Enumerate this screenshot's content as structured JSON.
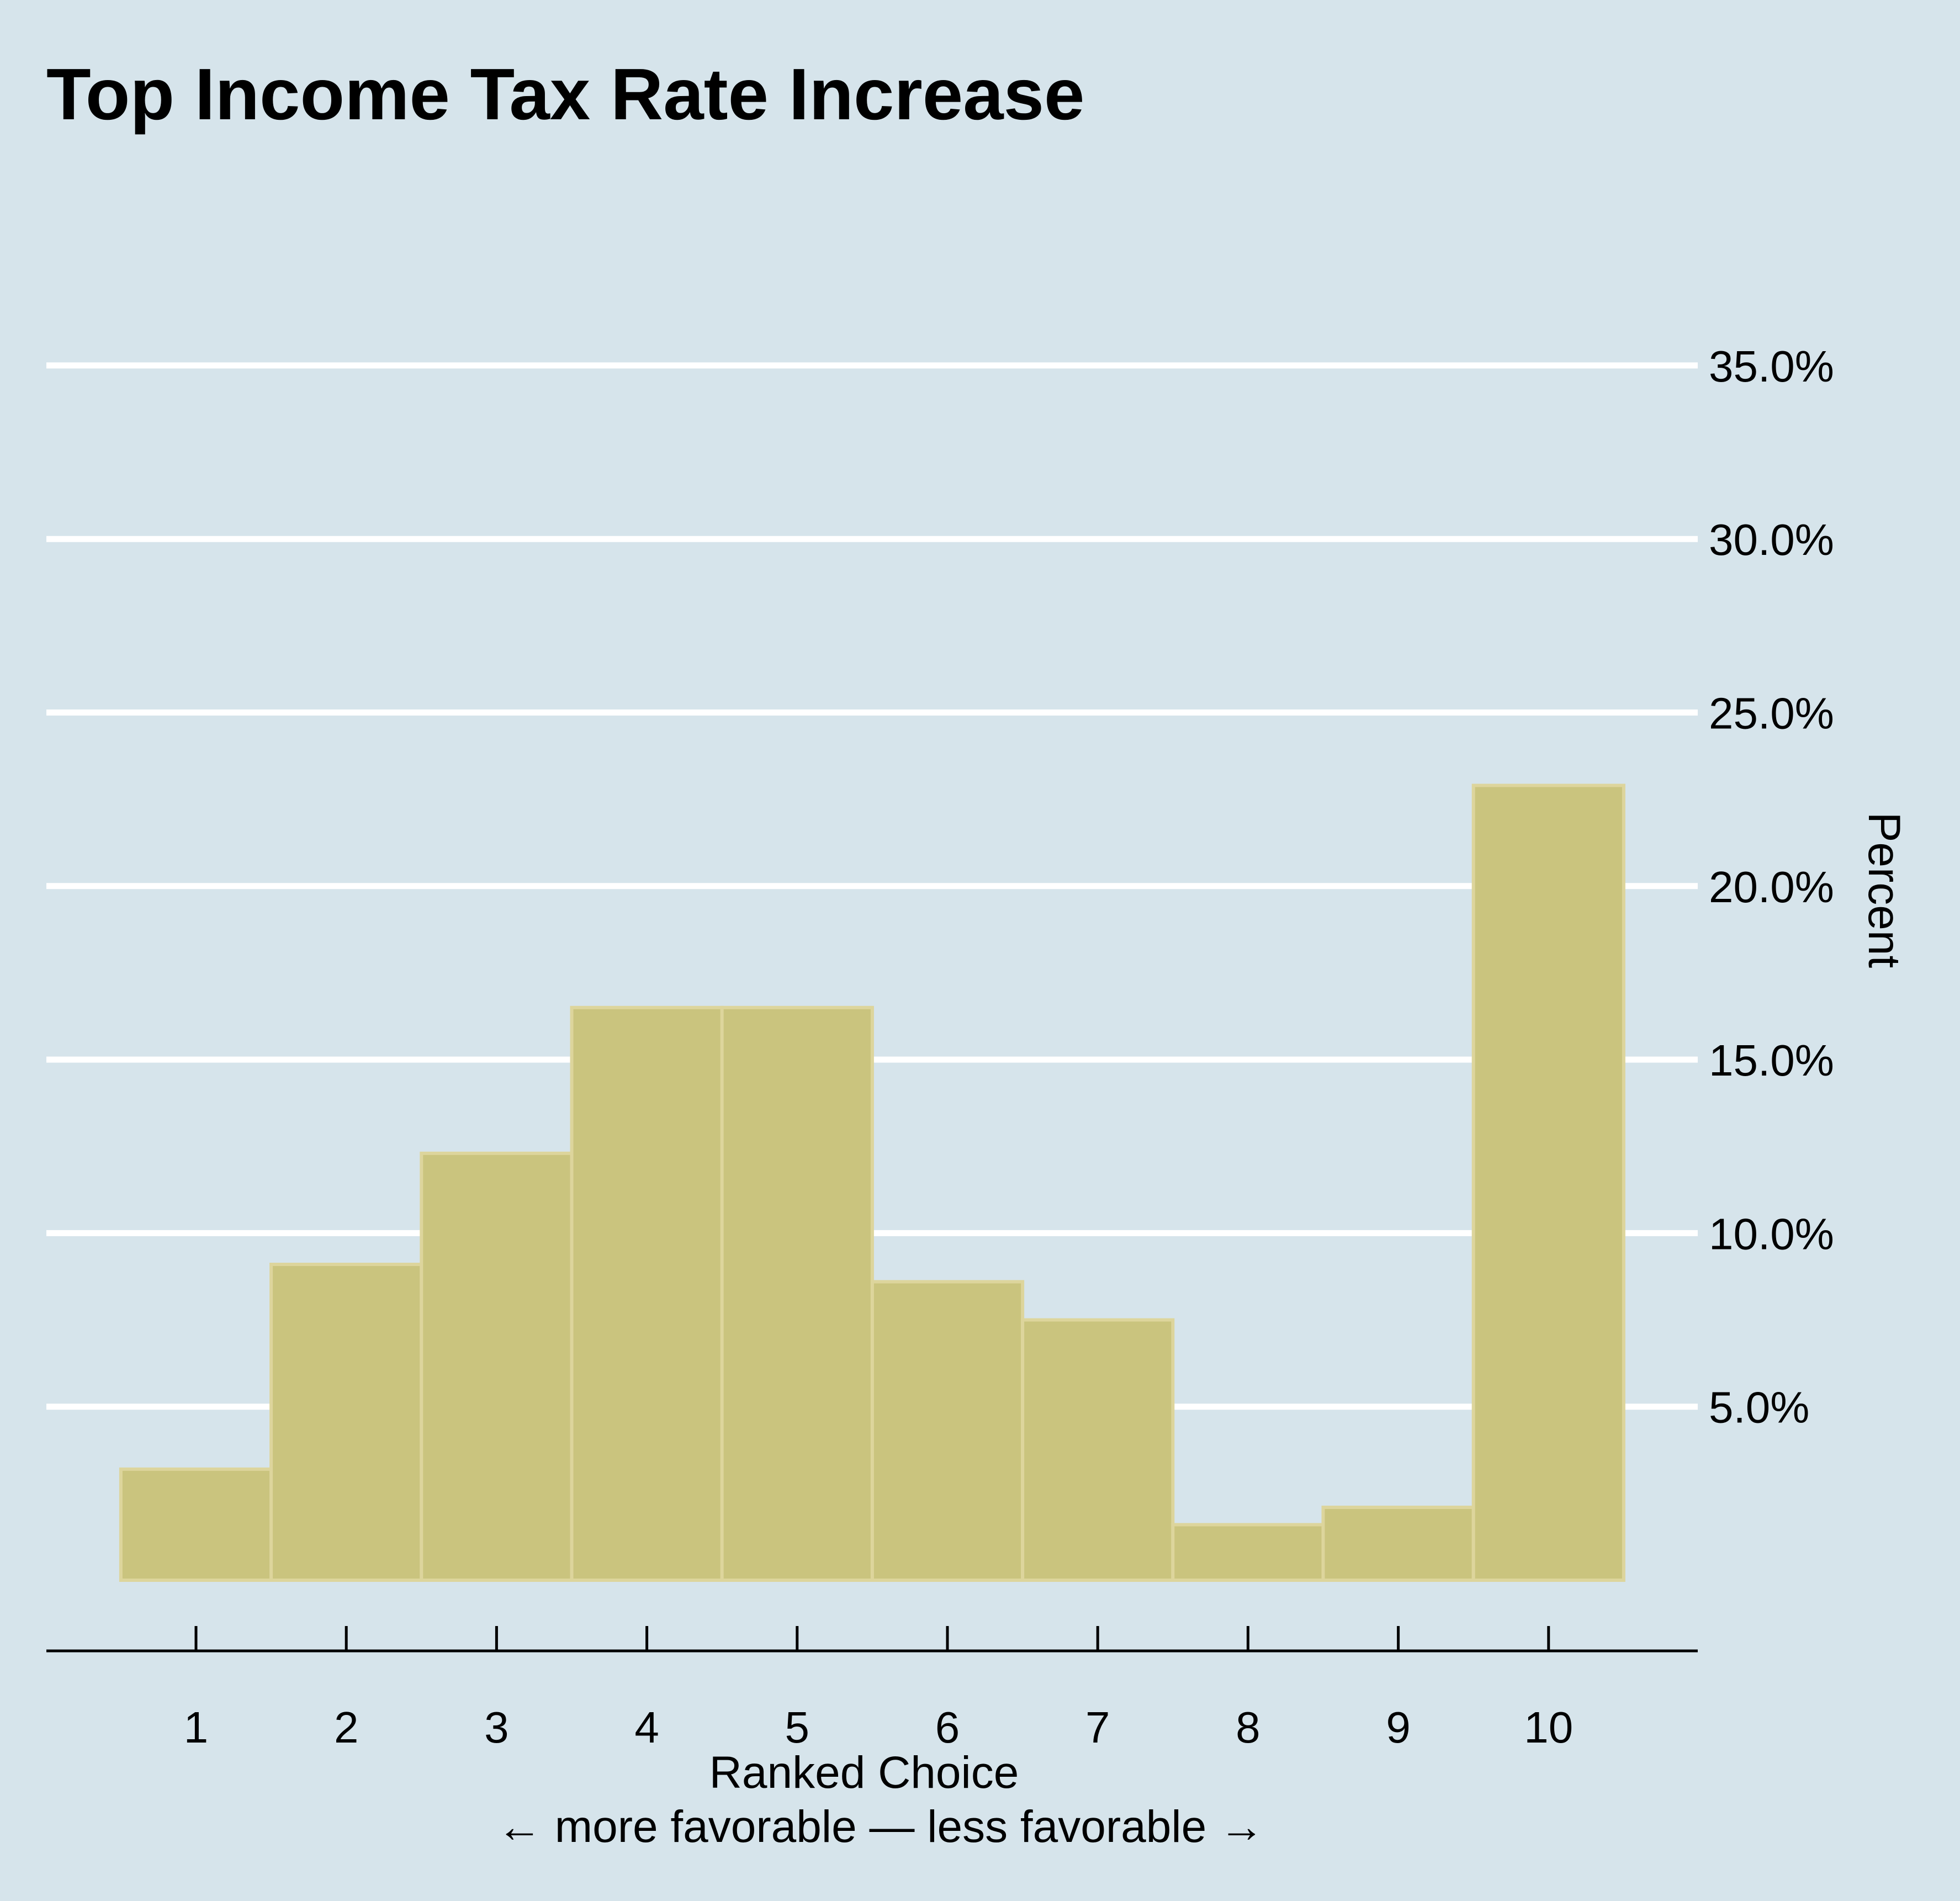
{
  "chart_data": {
    "type": "bar",
    "title": "Top Income Tax Rate Increase",
    "categories": [
      "1",
      "2",
      "3",
      "4",
      "5",
      "6",
      "7",
      "8",
      "9",
      "10"
    ],
    "values": [
      3.2,
      9.1,
      12.3,
      16.5,
      16.5,
      8.6,
      7.5,
      1.6,
      2.1,
      22.9
    ],
    "xlabel": "Ranked Choice",
    "xlabel_subtitle": "← more favorable — less favorable →",
    "ylabel": "Percent",
    "y_ticks": [
      "5.0%",
      "10.0%",
      "15.0%",
      "20.0%",
      "25.0%",
      "30.0%",
      "35.0%"
    ],
    "y_tick_values": [
      5,
      10,
      15,
      20,
      25,
      30,
      35
    ],
    "ylim": [
      0,
      35
    ],
    "y_axis_position": "right",
    "grid": true,
    "legend": "none",
    "colors": {
      "background": "#d6e4eb",
      "bar_fill": "#cac47e",
      "bar_stroke": "#ddd59c",
      "gridline": "#ffffff",
      "axis": "#000000"
    }
  }
}
